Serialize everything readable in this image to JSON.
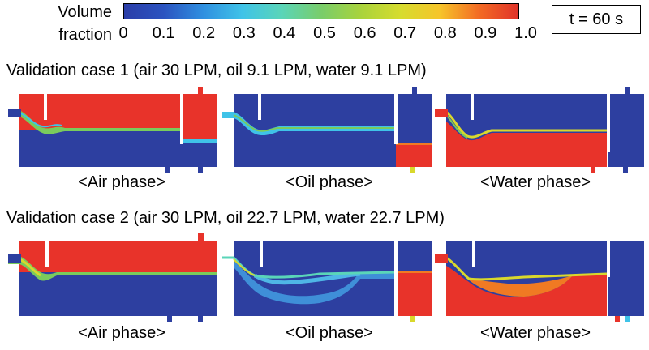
{
  "legend": {
    "title_line1": "Volume",
    "title_line2": "fraction",
    "ticks": [
      "0",
      "0.1",
      "0.2",
      "0.3",
      "0.4",
      "0.5",
      "0.6",
      "0.7",
      "0.8",
      "0.9",
      "1.0"
    ],
    "colors": [
      "#2b3ea8",
      "#2b53c0",
      "#2f8fe0",
      "#3fc3e8",
      "#5ad5b8",
      "#79cd6a",
      "#a9d33c",
      "#d6dc2e",
      "#f6c52a",
      "#f36b24",
      "#e0332a"
    ]
  },
  "time_label": "t = 60 s",
  "cases": [
    {
      "title": "Validation case 1 (air 30 LPM, oil 9.1 LPM, water 9.1 LPM)",
      "captions": [
        "<Air phase>",
        "<Oil phase>",
        "<Water phase>"
      ]
    },
    {
      "title": "Validation case 2 (air 30 LPM, oil 22.7 LPM, water 22.7 LPM)",
      "captions": [
        "<Air phase>",
        "<Oil phase>",
        "<Water phase>"
      ]
    }
  ],
  "colors": {
    "blue": "#2d3fa0",
    "red": "#e8332a",
    "cyan": "#3fc3e8",
    "green": "#7acb5c",
    "yellow": "#d9d82c",
    "orange": "#f07a23"
  }
}
